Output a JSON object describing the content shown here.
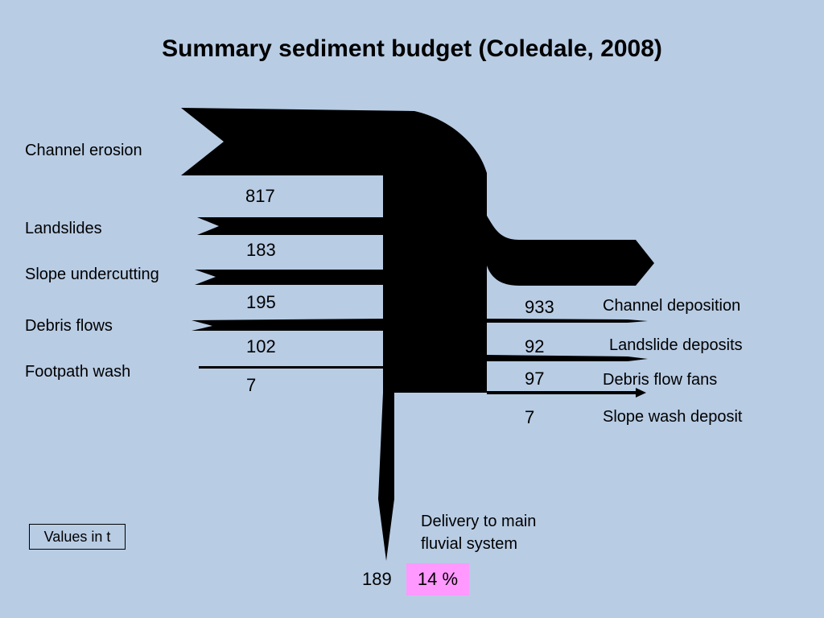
{
  "title": "Summary sediment budget (Coledale, 2008)",
  "inputs": [
    {
      "label": "Channel erosion",
      "value": "817"
    },
    {
      "label": "Landslides",
      "value": "183"
    },
    {
      "label": "Slope undercutting",
      "value": "195"
    },
    {
      "label": "Debris flows",
      "value": "102"
    },
    {
      "label": "Footpath wash",
      "value": "7"
    }
  ],
  "outputs": [
    {
      "label": "Channel deposition",
      "value": "933"
    },
    {
      "label": "Landslide deposits",
      "value": "92"
    },
    {
      "label": "Debris flow fans",
      "value": "97"
    },
    {
      "label": "Slope wash deposit",
      "value": "7"
    }
  ],
  "delivery": {
    "label_line1": "Delivery to main",
    "label_line2": "fluvial system",
    "value": "189",
    "percent": "14 %"
  },
  "units_note": "Values in t",
  "colors": {
    "background": "#b8cce4",
    "flow": "#000000",
    "highlight": "#ff99ff"
  }
}
